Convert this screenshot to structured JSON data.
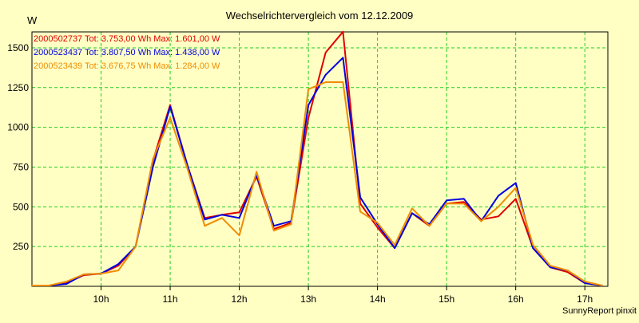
{
  "chart_data": {
    "type": "line",
    "title": "Wechselrichtervergleich vom 12.12.2009",
    "ylabel": "W",
    "xlabel": "",
    "footer": "SunnyReport pinxit",
    "ylim": [
      0,
      1600
    ],
    "xlim": [
      9.0,
      17.333
    ],
    "yticks": [
      250,
      500,
      750,
      1000,
      1250,
      1500
    ],
    "xticks": [
      {
        "label": "10h",
        "value": 10
      },
      {
        "label": "11h",
        "value": 11
      },
      {
        "label": "12h",
        "value": 12
      },
      {
        "label": "13h",
        "value": 13
      },
      {
        "label": "14h",
        "value": 14
      },
      {
        "label": "15h",
        "value": 15
      },
      {
        "label": "16h",
        "value": 16
      },
      {
        "label": "17h",
        "value": 17
      }
    ],
    "x": [
      9.0,
      9.25,
      9.5,
      9.75,
      10.0,
      10.25,
      10.5,
      10.75,
      11.0,
      11.25,
      11.5,
      11.75,
      12.0,
      12.25,
      12.5,
      12.75,
      13.0,
      13.25,
      13.5,
      13.75,
      14.0,
      14.25,
      14.5,
      14.75,
      15.0,
      15.25,
      15.5,
      15.75,
      16.0,
      16.25,
      16.5,
      16.75,
      17.0,
      17.25
    ],
    "series": [
      {
        "name": "2000502737",
        "legend": "2000502737 Tot: 3.753,00 Wh Max: 1.601,00 W",
        "color": "#E00000",
        "values": [
          5,
          5,
          20,
          70,
          80,
          130,
          250,
          790,
          1140,
          760,
          430,
          450,
          465,
          690,
          360,
          400,
          1060,
          1470,
          1601,
          520,
          370,
          240,
          460,
          380,
          520,
          530,
          420,
          440,
          550,
          240,
          120,
          90,
          20,
          5
        ]
      },
      {
        "name": "2000523437",
        "legend": "2000523437 Tot: 3.807,50 Wh Max: 1.438,00 W",
        "color": "#0000E0",
        "values": [
          5,
          5,
          15,
          75,
          80,
          140,
          250,
          750,
          1130,
          760,
          420,
          450,
          430,
          700,
          380,
          410,
          1140,
          1330,
          1438,
          560,
          390,
          240,
          460,
          390,
          540,
          550,
          410,
          570,
          650,
          240,
          120,
          100,
          20,
          5
        ]
      },
      {
        "name": "2000523439",
        "legend": "2000523439 Tot: 3.676,75 Wh Max: 1.284,00 W",
        "color": "#F08C00",
        "values": [
          5,
          5,
          30,
          75,
          80,
          100,
          250,
          800,
          1060,
          740,
          380,
          430,
          320,
          720,
          350,
          390,
          1240,
          1284,
          1284,
          470,
          400,
          260,
          490,
          380,
          520,
          520,
          410,
          500,
          620,
          260,
          130,
          100,
          30,
          5
        ]
      }
    ]
  }
}
